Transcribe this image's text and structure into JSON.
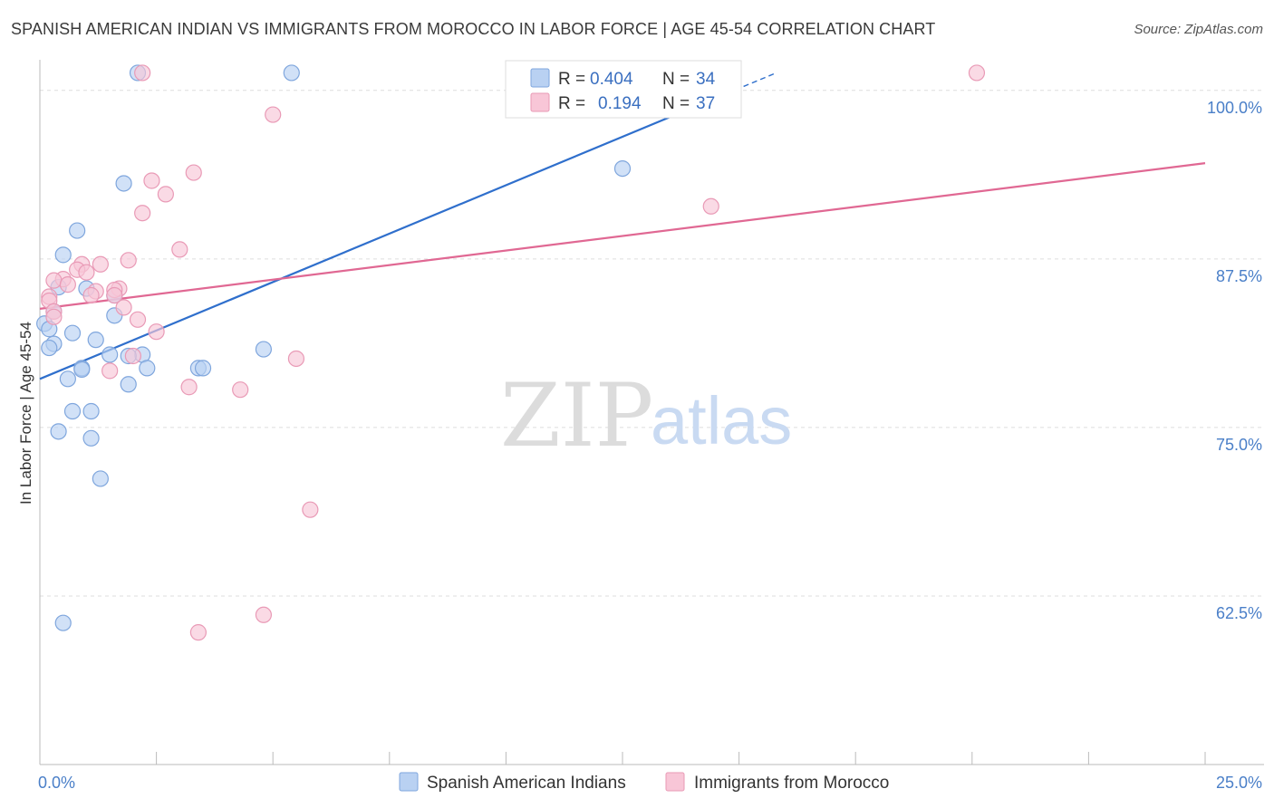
{
  "title": "SPANISH AMERICAN INDIAN VS IMMIGRANTS FROM MOROCCO IN LABOR FORCE | AGE 45-54 CORRELATION CHART",
  "source": "Source: ZipAtlas.com",
  "watermark": {
    "zip": "ZIP",
    "atlas": "atlas"
  },
  "colors": {
    "blue_fill": "#b9d1f2",
    "blue_stroke": "#7fa6dd",
    "blue_line": "#2f6fcc",
    "pink_fill": "#f8c6d7",
    "pink_stroke": "#e99ab6",
    "pink_line": "#e06893",
    "tick": "#4a7fc8",
    "grid": "#dddddd"
  },
  "legend": {
    "rows": [
      {
        "r_label": "R = ",
        "r_value": "0.404",
        "n_label": "N = ",
        "n_value": "34"
      },
      {
        "r_label": "R = ",
        "r_value": "0.194",
        "n_label": "N = ",
        "n_value": "37"
      }
    ]
  },
  "chart_data": {
    "type": "scatter",
    "title": "SPANISH AMERICAN INDIAN VS IMMIGRANTS FROM MOROCCO IN LABOR FORCE | AGE 45-54 CORRELATION CHART",
    "xlabel": "",
    "ylabel": "In Labor Force | Age 45-54",
    "xlim": [
      0,
      25
    ],
    "ylim": [
      50,
      102
    ],
    "x_ticks": [
      "0.0%",
      "25.0%"
    ],
    "y_ticks": [
      {
        "value": 100,
        "label": "100.0%"
      },
      {
        "value": 87.5,
        "label": "87.5%"
      },
      {
        "value": 75,
        "label": "75.0%"
      },
      {
        "value": 62.5,
        "label": "62.5%"
      }
    ],
    "series": [
      {
        "name": "Spanish American Indians",
        "color": "blue",
        "trend": {
          "x": [
            0,
            15.8
          ],
          "y": [
            78.6,
            101.3
          ],
          "dashed_from_x": 14.2
        },
        "points": [
          {
            "x": 2.1,
            "y": 101.3
          },
          {
            "x": 5.4,
            "y": 101.3
          },
          {
            "x": 12.5,
            "y": 94.2
          },
          {
            "x": 1.8,
            "y": 93.1
          },
          {
            "x": 0.8,
            "y": 89.6
          },
          {
            "x": 0.5,
            "y": 87.8
          },
          {
            "x": 0.4,
            "y": 85.4
          },
          {
            "x": 1.0,
            "y": 85.3
          },
          {
            "x": 1.6,
            "y": 84.8
          },
          {
            "x": 0.3,
            "y": 83.6
          },
          {
            "x": 1.6,
            "y": 83.3
          },
          {
            "x": 0.1,
            "y": 82.7
          },
          {
            "x": 0.2,
            "y": 82.3
          },
          {
            "x": 0.7,
            "y": 82.0
          },
          {
            "x": 1.2,
            "y": 81.5
          },
          {
            "x": 0.3,
            "y": 81.2
          },
          {
            "x": 0.2,
            "y": 80.9
          },
          {
            "x": 4.8,
            "y": 80.8
          },
          {
            "x": 1.5,
            "y": 80.4
          },
          {
            "x": 2.2,
            "y": 80.4
          },
          {
            "x": 1.9,
            "y": 80.3
          },
          {
            "x": 0.9,
            "y": 79.4
          },
          {
            "x": 0.9,
            "y": 79.3
          },
          {
            "x": 2.3,
            "y": 79.4
          },
          {
            "x": 3.4,
            "y": 79.4
          },
          {
            "x": 3.5,
            "y": 79.4
          },
          {
            "x": 0.6,
            "y": 78.6
          },
          {
            "x": 1.9,
            "y": 78.2
          },
          {
            "x": 0.7,
            "y": 76.2
          },
          {
            "x": 1.1,
            "y": 76.2
          },
          {
            "x": 0.4,
            "y": 74.7
          },
          {
            "x": 1.1,
            "y": 74.2
          },
          {
            "x": 1.3,
            "y": 71.2
          },
          {
            "x": 0.5,
            "y": 60.5
          }
        ]
      },
      {
        "name": "Immigrants from Morocco",
        "color": "pink",
        "trend": {
          "x": [
            0,
            25
          ],
          "y": [
            83.8,
            94.6
          ]
        },
        "points": [
          {
            "x": 2.2,
            "y": 101.3
          },
          {
            "x": 20.1,
            "y": 101.3
          },
          {
            "x": 5.0,
            "y": 98.2
          },
          {
            "x": 3.3,
            "y": 93.9
          },
          {
            "x": 2.4,
            "y": 93.3
          },
          {
            "x": 2.7,
            "y": 92.3
          },
          {
            "x": 14.4,
            "y": 91.4
          },
          {
            "x": 2.2,
            "y": 90.9
          },
          {
            "x": 3.0,
            "y": 88.2
          },
          {
            "x": 1.9,
            "y": 87.4
          },
          {
            "x": 1.3,
            "y": 87.1
          },
          {
            "x": 0.9,
            "y": 87.1
          },
          {
            "x": 0.8,
            "y": 86.7
          },
          {
            "x": 1.0,
            "y": 86.5
          },
          {
            "x": 0.5,
            "y": 86.0
          },
          {
            "x": 0.3,
            "y": 85.9
          },
          {
            "x": 0.6,
            "y": 85.6
          },
          {
            "x": 1.7,
            "y": 85.3
          },
          {
            "x": 1.2,
            "y": 85.1
          },
          {
            "x": 1.6,
            "y": 85.2
          },
          {
            "x": 1.1,
            "y": 84.8
          },
          {
            "x": 1.6,
            "y": 84.8
          },
          {
            "x": 0.2,
            "y": 84.7
          },
          {
            "x": 0.2,
            "y": 84.4
          },
          {
            "x": 1.8,
            "y": 83.9
          },
          {
            "x": 0.3,
            "y": 83.6
          },
          {
            "x": 0.3,
            "y": 83.2
          },
          {
            "x": 2.1,
            "y": 83.0
          },
          {
            "x": 2.5,
            "y": 82.1
          },
          {
            "x": 5.5,
            "y": 80.1
          },
          {
            "x": 2.0,
            "y": 80.3
          },
          {
            "x": 1.5,
            "y": 79.2
          },
          {
            "x": 3.2,
            "y": 78.0
          },
          {
            "x": 4.3,
            "y": 77.8
          },
          {
            "x": 5.8,
            "y": 68.9
          },
          {
            "x": 4.8,
            "y": 61.1
          },
          {
            "x": 3.4,
            "y": 59.8
          }
        ]
      }
    ]
  }
}
